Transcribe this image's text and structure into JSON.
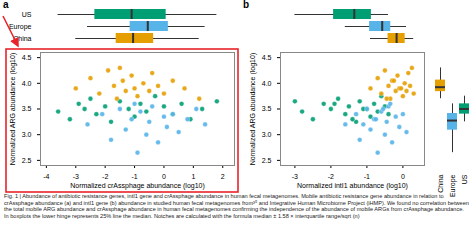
{
  "chart_data": [
    {
      "type": "scatter",
      "panel": "a",
      "x_label": "Normalized crAssphage abundance (log10)",
      "y_label": "Normalized ARG abundance (log10)",
      "xlim": [
        -4.2,
        2.4
      ],
      "xticks": [
        -4,
        -3,
        -2,
        -1,
        0,
        1,
        2
      ],
      "ylim": [
        2.4,
        4.6
      ],
      "yticks": [
        {
          "value": 2.5,
          "label": "2.5"
        },
        {
          "value": 3,
          "label": "3.0"
        },
        {
          "value": 3.5,
          "label": "3.5"
        },
        {
          "value": 4,
          "label": "4.0"
        },
        {
          "value": 4.5,
          "label": "4.5"
        }
      ],
      "series": [
        {
          "name": "US",
          "color": "#009E73",
          "x": [
            -3.6,
            -3.2,
            -2.9,
            -2.7,
            -2.5,
            -2.3,
            -2.0,
            -1.8,
            -1.5,
            -1.2,
            -1.0,
            -0.8,
            -0.6,
            -0.3,
            0.0,
            0.3,
            0.6,
            0.9,
            1.3,
            1.8
          ],
          "values": [
            3.45,
            3.3,
            3.6,
            3.5,
            3.7,
            3.4,
            3.55,
            3.25,
            3.65,
            3.5,
            3.35,
            3.6,
            3.45,
            3.75,
            3.55,
            3.4,
            3.6,
            3.3,
            3.5,
            3.65
          ]
        },
        {
          "name": "Europe",
          "color": "#56B4E9",
          "x": [
            -2.6,
            -2.1,
            -1.8,
            -1.5,
            -1.3,
            -1.1,
            -0.9,
            -0.8,
            -0.6,
            -0.5,
            -0.4,
            -0.2,
            0.0,
            0.1,
            0.3,
            0.5,
            0.8,
            1.1,
            1.4,
            -1.0
          ],
          "values": [
            3.2,
            3.4,
            2.9,
            3.5,
            3.1,
            3.3,
            2.65,
            3.45,
            3.0,
            3.25,
            3.55,
            2.85,
            3.35,
            3.15,
            3.4,
            3.05,
            3.3,
            3.5,
            3.2,
            3.6
          ]
        },
        {
          "name": "China",
          "color": "#E69F00",
          "x": [
            -3.0,
            -2.5,
            -2.2,
            -1.9,
            -1.7,
            -1.6,
            -1.4,
            -1.3,
            -1.1,
            -1.0,
            -0.9,
            -0.7,
            -0.5,
            -0.4,
            -0.2,
            0.0,
            0.3,
            0.7,
            1.2,
            -1.5
          ],
          "values": [
            3.9,
            4.1,
            3.8,
            4.25,
            3.95,
            3.7,
            4.05,
            3.85,
            4.15,
            3.9,
            3.75,
            4.0,
            3.85,
            4.2,
            3.95,
            3.8,
            4.05,
            3.9,
            3.7,
            4.3
          ]
        }
      ]
    },
    {
      "type": "scatter",
      "panel": "b",
      "x_label": "Normalized intI1 abundance (log10)",
      "y_label": "Normalized ARG abundance (log10)",
      "xlim": [
        -3.4,
        0.6
      ],
      "xticks": [
        -3,
        -2,
        -1,
        0
      ],
      "ylim": [
        2.4,
        4.6
      ],
      "yticks": [
        {
          "value": 2.5,
          "label": "2.5"
        },
        {
          "value": 3,
          "label": "3.0"
        },
        {
          "value": 3.5,
          "label": "3.5"
        },
        {
          "value": 4,
          "label": "4.0"
        },
        {
          "value": 4.5,
          "label": "4.5"
        }
      ],
      "series": [
        {
          "name": "US",
          "color": "#009E73",
          "x": [
            -2.8,
            -2.5,
            -2.2,
            -2.0,
            -1.8,
            -1.6,
            -1.5,
            -1.3,
            -1.2,
            -1.0,
            -0.9,
            -0.8,
            -0.7,
            -0.6,
            -0.5,
            -0.4,
            -1.9,
            -1.4,
            -1.1,
            -3.0
          ],
          "values": [
            3.45,
            3.3,
            3.6,
            3.5,
            3.7,
            3.4,
            3.55,
            3.25,
            3.65,
            3.5,
            3.35,
            3.6,
            3.45,
            3.75,
            3.55,
            3.4,
            3.6,
            3.3,
            3.5,
            3.65
          ]
        },
        {
          "name": "Europe",
          "color": "#56B4E9",
          "x": [
            -1.6,
            -1.3,
            -1.2,
            -1.0,
            -0.9,
            -0.8,
            -0.7,
            -0.6,
            -0.5,
            -0.45,
            -0.4,
            -0.3,
            -0.2,
            -0.1,
            0.0,
            0.1,
            -0.75,
            -0.55,
            -1.1,
            -0.35
          ],
          "values": [
            3.2,
            3.4,
            2.9,
            3.5,
            3.1,
            3.3,
            2.65,
            3.45,
            3.0,
            3.25,
            3.55,
            2.85,
            3.35,
            3.15,
            3.4,
            3.05,
            3.3,
            3.5,
            3.2,
            3.6
          ]
        },
        {
          "name": "China",
          "color": "#E69F00",
          "x": [
            -0.9,
            -0.7,
            -0.6,
            -0.5,
            -0.4,
            -0.35,
            -0.3,
            -0.2,
            -0.15,
            -0.1,
            0.0,
            0.05,
            0.1,
            0.15,
            0.2,
            0.3,
            -0.25,
            -0.05,
            -0.45,
            0.25
          ],
          "values": [
            3.9,
            4.1,
            3.8,
            4.25,
            3.95,
            3.7,
            4.05,
            3.85,
            4.15,
            3.9,
            3.75,
            4.0,
            3.85,
            4.2,
            3.95,
            3.8,
            4.05,
            3.9,
            3.7,
            4.3
          ]
        }
      ]
    }
  ],
  "caption": "Fig. 1 | Abundance of antibiotic resistance genes, intI1 gene and crAssphage abundance in human fecal metagenomes. Mobile antibiotic resistance gene abundance in relation to crAssphage abundance (a) and intI1 gene (b) abundance in studied human fecal metagenomes from³⁵ and Integrative Human Microbiome Project (iHMP). We found no correlation between the total mobile ARG abundance and crAssphage abundance in human fecal metagenomes confirming the independence of the abundance of mobile ARGs from crAssphage abundance. In boxplots the lower hinge represents 25% line the median. Notches are calculated with the formula median ± 1.58 × interquartile range/sqrt (n)"
}
